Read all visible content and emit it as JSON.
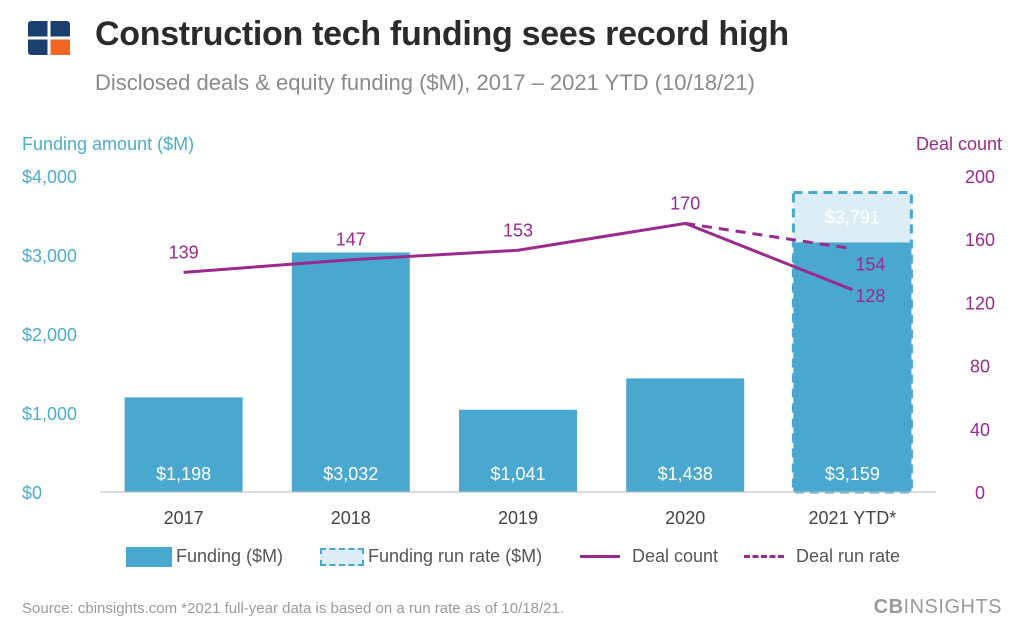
{
  "header": {
    "title": "Construction tech funding sees record high",
    "subtitle": "Disclosed deals & equity funding ($M), 2017 – 2021 YTD (10/18/21)"
  },
  "axes": {
    "left_title": "Funding amount ($M)",
    "right_title": "Deal count"
  },
  "legend": {
    "funding": "Funding ($M)",
    "funding_run_rate": "Funding run rate ($M)",
    "deal_count": "Deal count",
    "deal_run_rate": "Deal run rate"
  },
  "footer": {
    "source": "Source: cbinsights.com  *2021 full-year data is based on a run rate as of 10/18/21.",
    "brand_bold": "CB",
    "brand_light": "INSIGHTS"
  },
  "colors": {
    "bar": "#4aa8d0",
    "run_rate_fill": "#dcedf6",
    "line": "#9a2a8c",
    "left_axis": "#4bacd0",
    "right_axis": "#9a2a8c",
    "logo_navy": "#1c3f6e",
    "logo_orange": "#f26522"
  },
  "chart_data": {
    "type": "bar",
    "categories": [
      "2017",
      "2018",
      "2019",
      "2020",
      "2021 YTD*"
    ],
    "series": [
      {
        "name": "Funding ($M)",
        "axis": "left",
        "kind": "bar",
        "values": [
          1198,
          3032,
          1041,
          1438,
          3159
        ],
        "labels": [
          "$1,198",
          "$3,032",
          "$1,041",
          "$1,438",
          "$3,159"
        ]
      },
      {
        "name": "Funding run rate ($M)",
        "axis": "left",
        "kind": "bar-dashed",
        "values": [
          null,
          null,
          null,
          null,
          3791
        ],
        "labels": [
          "",
          "",
          "",
          "",
          "$3,791"
        ]
      },
      {
        "name": "Deal count",
        "axis": "right",
        "kind": "line",
        "values": [
          139,
          147,
          153,
          170,
          128
        ]
      },
      {
        "name": "Deal run rate",
        "axis": "right",
        "kind": "line-dashed",
        "values": [
          null,
          null,
          null,
          170,
          154
        ]
      }
    ],
    "ylim_left": [
      0,
      4000
    ],
    "yticks_left": [
      "$0",
      "$1,000",
      "$2,000",
      "$3,000",
      "$4,000"
    ],
    "ylim_right": [
      0,
      200
    ],
    "yticks_right": [
      "0",
      "40",
      "80",
      "120",
      "160",
      "200"
    ],
    "grid": false,
    "legend_position": "bottom"
  }
}
